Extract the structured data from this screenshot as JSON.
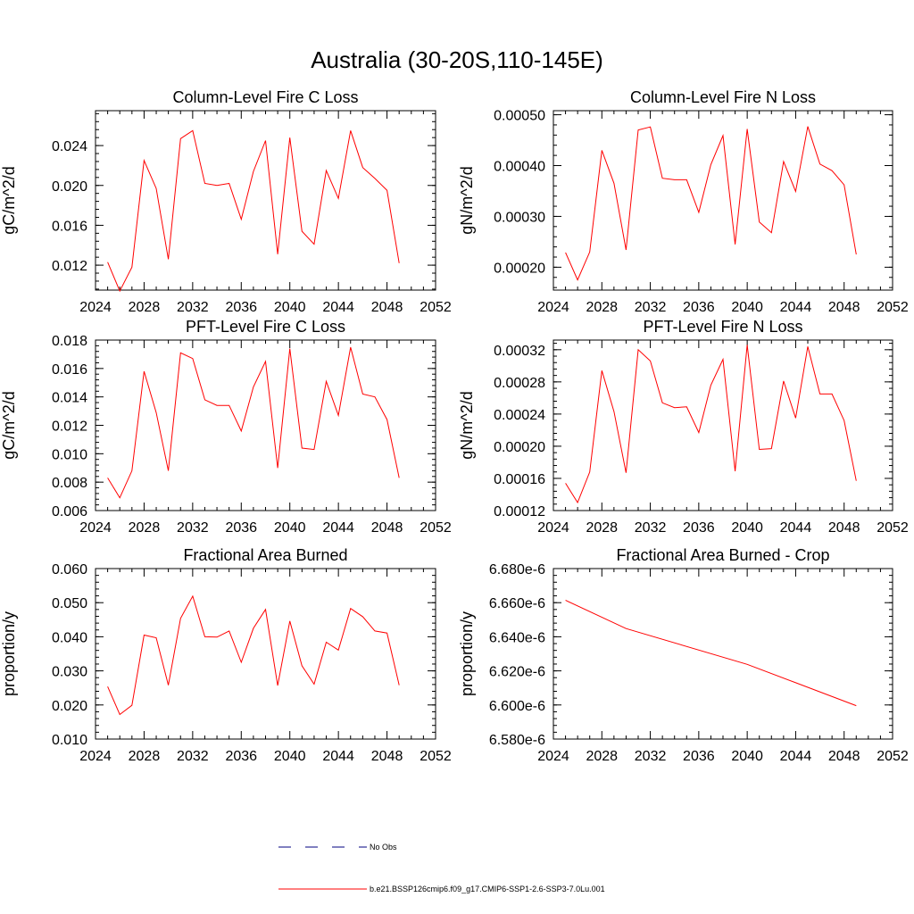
{
  "page": {
    "title": "Australia (30-20S,110-145E)"
  },
  "legend": {
    "entries": [
      {
        "label": "No Obs",
        "color": "#000080",
        "dashed": true
      },
      {
        "label": "b.e21.BSSP126cmip6.f09_g17.CMIP6-SSP1-2.6-SSP3-7.0Lu.001",
        "color": "#ff0000",
        "dashed": false
      }
    ]
  },
  "chart_data": [
    {
      "type": "line",
      "title": "Column-Level Fire C Loss",
      "ylabel": "gC/m^2/d",
      "xlim": [
        2024,
        2052
      ],
      "xticks": [
        2024,
        2028,
        2032,
        2036,
        2040,
        2044,
        2048,
        2052
      ],
      "xtick_labels": [
        "2024",
        "2028",
        "2032",
        "2036",
        "2040",
        "2044",
        "2048",
        "2052"
      ],
      "ylim": [
        0.0095,
        0.0275
      ],
      "yticks": [
        0.012,
        0.016,
        0.02,
        0.024
      ],
      "ytick_labels": [
        "0.012",
        "0.016",
        "0.020",
        "0.024"
      ],
      "series": [
        {
          "color": "#ff0000",
          "x": [
            2025,
            2026,
            2027,
            2028,
            2029,
            2030,
            2031,
            2032,
            2033,
            2034,
            2035,
            2036,
            2037,
            2038,
            2039,
            2040,
            2041,
            2042,
            2043,
            2044,
            2045,
            2046,
            2047,
            2048,
            2049
          ],
          "values": [
            0.0123,
            0.0094,
            0.0118,
            0.0225,
            0.0197,
            0.0126,
            0.0247,
            0.0255,
            0.0202,
            0.02,
            0.0202,
            0.0166,
            0.0214,
            0.0245,
            0.0131,
            0.0248,
            0.0154,
            0.0141,
            0.0215,
            0.0187,
            0.0255,
            0.0218,
            0.0207,
            0.0195,
            0.0122
          ]
        }
      ]
    },
    {
      "type": "line",
      "title": "Column-Level Fire N Loss",
      "ylabel": "gN/m^2/d",
      "xlim": [
        2024,
        2052
      ],
      "xticks": [
        2024,
        2028,
        2032,
        2036,
        2040,
        2044,
        2048,
        2052
      ],
      "xtick_labels": [
        "2024",
        "2028",
        "2032",
        "2036",
        "2040",
        "2044",
        "2048",
        "2052"
      ],
      "ylim": [
        0.000155,
        0.000508
      ],
      "yticks": [
        0.0002,
        0.0003,
        0.0004,
        0.0005
      ],
      "ytick_labels": [
        "0.00020",
        "0.00030",
        "0.00040",
        "0.00050"
      ],
      "series": [
        {
          "color": "#ff0000",
          "x": [
            2025,
            2026,
            2027,
            2028,
            2029,
            2030,
            2031,
            2032,
            2033,
            2034,
            2035,
            2036,
            2037,
            2038,
            2039,
            2040,
            2041,
            2042,
            2043,
            2044,
            2045,
            2046,
            2047,
            2048,
            2049
          ],
          "values": [
            0.000229,
            0.000175,
            0.00023,
            0.00043,
            0.000365,
            0.000234,
            0.00047,
            0.000476,
            0.000375,
            0.000372,
            0.000372,
            0.000308,
            0.000402,
            0.000459,
            0.000245,
            0.000472,
            0.000289,
            0.000268,
            0.000408,
            0.000349,
            0.000477,
            0.000403,
            0.00039,
            0.000362,
            0.000225
          ]
        }
      ]
    },
    {
      "type": "line",
      "title": "PFT-Level Fire C Loss",
      "ylabel": "gC/m^2/d",
      "xlim": [
        2024,
        2052
      ],
      "xticks": [
        2024,
        2028,
        2032,
        2036,
        2040,
        2044,
        2048,
        2052
      ],
      "xtick_labels": [
        "2024",
        "2028",
        "2032",
        "2036",
        "2040",
        "2044",
        "2048",
        "2052"
      ],
      "ylim": [
        0.006,
        0.018
      ],
      "yticks": [
        0.006,
        0.008,
        0.01,
        0.012,
        0.014,
        0.016,
        0.018
      ],
      "ytick_labels": [
        "0.006",
        "0.008",
        "0.010",
        "0.012",
        "0.014",
        "0.016",
        "0.018"
      ],
      "series": [
        {
          "color": "#ff0000",
          "x": [
            2025,
            2026,
            2027,
            2028,
            2029,
            2030,
            2031,
            2032,
            2033,
            2034,
            2035,
            2036,
            2037,
            2038,
            2039,
            2040,
            2041,
            2042,
            2043,
            2044,
            2045,
            2046,
            2047,
            2048,
            2049
          ],
          "values": [
            0.0083,
            0.0069,
            0.0088,
            0.0158,
            0.0129,
            0.0088,
            0.0171,
            0.0167,
            0.0138,
            0.0134,
            0.0134,
            0.0116,
            0.0147,
            0.0165,
            0.009,
            0.0174,
            0.0104,
            0.0103,
            0.0151,
            0.0127,
            0.0175,
            0.0142,
            0.014,
            0.0124,
            0.0083
          ]
        }
      ]
    },
    {
      "type": "line",
      "title": "PFT-Level Fire N Loss",
      "ylabel": "gN/m^2/d",
      "xlim": [
        2024,
        2052
      ],
      "xticks": [
        2024,
        2028,
        2032,
        2036,
        2040,
        2044,
        2048,
        2052
      ],
      "xtick_labels": [
        "2024",
        "2028",
        "2032",
        "2036",
        "2040",
        "2044",
        "2048",
        "2052"
      ],
      "ylim": [
        0.00012,
        0.000332
      ],
      "yticks": [
        0.00012,
        0.00016,
        0.0002,
        0.00024,
        0.00028,
        0.00032
      ],
      "ytick_labels": [
        "0.00012",
        "0.00016",
        "0.00020",
        "0.00024",
        "0.00028",
        "0.00032"
      ],
      "series": [
        {
          "color": "#ff0000",
          "x": [
            2025,
            2026,
            2027,
            2028,
            2029,
            2030,
            2031,
            2032,
            2033,
            2034,
            2035,
            2036,
            2037,
            2038,
            2039,
            2040,
            2041,
            2042,
            2043,
            2044,
            2045,
            2046,
            2047,
            2048,
            2049
          ],
          "values": [
            0.000154,
            0.00013,
            0.000168,
            0.000294,
            0.000243,
            0.000167,
            0.00032,
            0.000306,
            0.000254,
            0.000248,
            0.000249,
            0.000217,
            0.000276,
            0.000308,
            0.000169,
            0.000326,
            0.000196,
            0.000197,
            0.000281,
            0.000235,
            0.000324,
            0.000265,
            0.000265,
            0.000232,
            0.000157
          ]
        }
      ]
    },
    {
      "type": "line",
      "title": "Fractional Area Burned",
      "ylabel": "proportion/y",
      "xlim": [
        2024,
        2052
      ],
      "xticks": [
        2024,
        2028,
        2032,
        2036,
        2040,
        2044,
        2048,
        2052
      ],
      "xtick_labels": [
        "2024",
        "2028",
        "2032",
        "2036",
        "2040",
        "2044",
        "2048",
        "2052"
      ],
      "ylim": [
        0.01,
        0.06
      ],
      "yticks": [
        0.01,
        0.02,
        0.03,
        0.04,
        0.05,
        0.06
      ],
      "ytick_labels": [
        "0.010",
        "0.020",
        "0.030",
        "0.040",
        "0.050",
        "0.060"
      ],
      "series": [
        {
          "color": "#ff0000",
          "x": [
            2025,
            2026,
            2027,
            2028,
            2029,
            2030,
            2031,
            2032,
            2033,
            2034,
            2035,
            2036,
            2037,
            2038,
            2039,
            2040,
            2041,
            2042,
            2043,
            2044,
            2045,
            2046,
            2047,
            2048,
            2049
          ],
          "values": [
            0.0254,
            0.0172,
            0.0199,
            0.0405,
            0.0397,
            0.0258,
            0.0454,
            0.0519,
            0.04,
            0.0399,
            0.0417,
            0.0325,
            0.0425,
            0.048,
            0.0257,
            0.0446,
            0.0315,
            0.0261,
            0.0384,
            0.0361,
            0.0483,
            0.0459,
            0.0417,
            0.0411,
            0.0258
          ]
        }
      ]
    },
    {
      "type": "line",
      "title": "Fractional Area Burned - Crop",
      "ylabel": "proportion/y",
      "xlim": [
        2024,
        2052
      ],
      "xticks": [
        2024,
        2028,
        2032,
        2036,
        2040,
        2044,
        2048,
        2052
      ],
      "xtick_labels": [
        "2024",
        "2028",
        "2032",
        "2036",
        "2040",
        "2044",
        "2048",
        "2052"
      ],
      "ylim": [
        6.58e-06,
        6.68e-06
      ],
      "yticks": [
        6.58e-06,
        6.6e-06,
        6.62e-06,
        6.64e-06,
        6.66e-06,
        6.68e-06
      ],
      "ytick_labels": [
        "6.580e-6",
        "6.600e-6",
        "6.620e-6",
        "6.640e-6",
        "6.660e-6",
        "6.680e-6"
      ],
      "series": [
        {
          "color": "#ff0000",
          "x": [
            2025,
            2030,
            2040,
            2049
          ],
          "values": [
            6.6614e-06,
            6.6448e-06,
            6.6238e-06,
            6.5996e-06
          ]
        }
      ]
    }
  ]
}
